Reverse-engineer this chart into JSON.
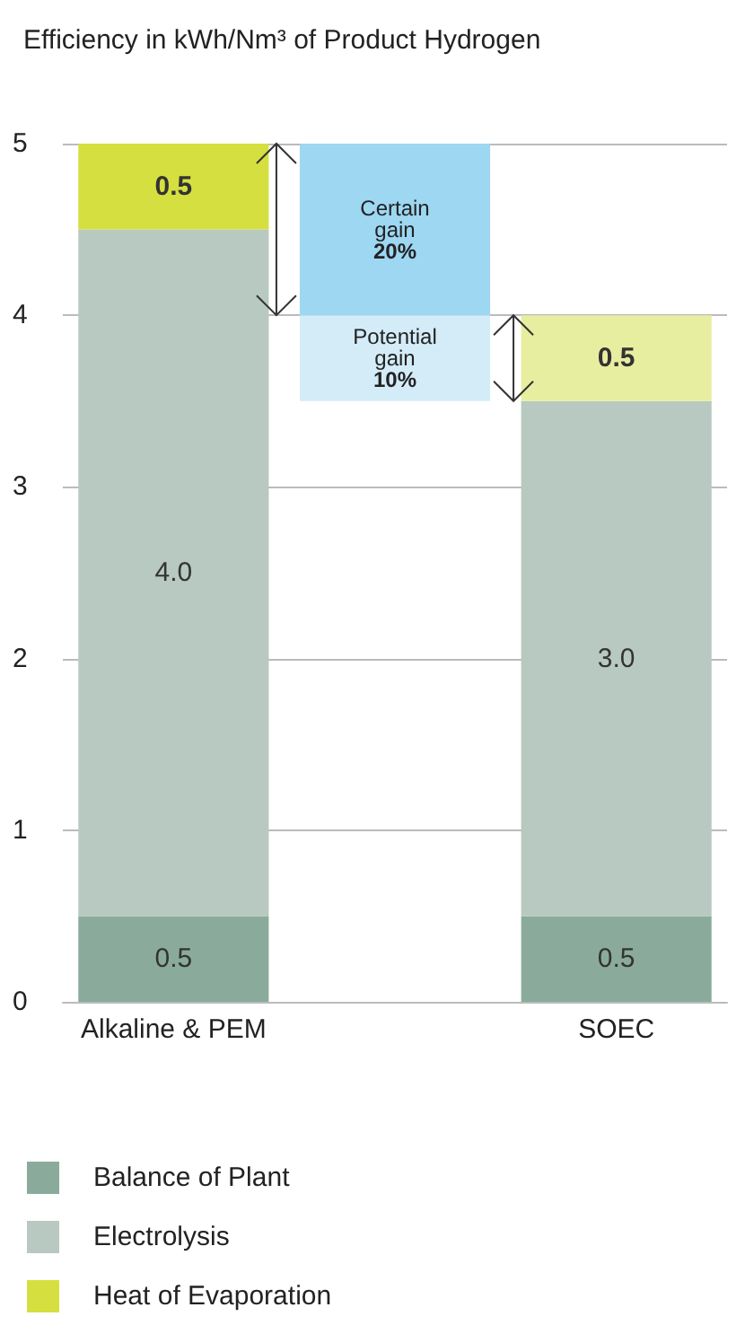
{
  "chart_data": {
    "type": "bar",
    "title": "Efficiency in kWh/Nm³ of Product Hydrogen",
    "categories": [
      "Alkaline & PEM",
      null,
      "SOEC"
    ],
    "stacked": true,
    "series": [
      {
        "name": "Balance of Plant",
        "color": "#8aab9c",
        "values": [
          0.5,
          null,
          0.5
        ],
        "value_labels": [
          "0.5",
          null,
          "0.5"
        ]
      },
      {
        "name": "Electrolysis",
        "color": "#b7c9c1",
        "values": [
          4.0,
          null,
          3.0
        ],
        "value_labels": [
          "4.0",
          null,
          "3.0"
        ]
      },
      {
        "name": "Heat of Evaporation",
        "color": "#d5df3f",
        "colors": [
          "#d5df3f",
          null,
          "#e8eea0"
        ],
        "values": [
          0.5,
          null,
          0.5
        ],
        "value_labels": [
          "0.5",
          null,
          "0.5"
        ]
      },
      {
        "color": "#d3ecf8",
        "base": [
          null,
          3.5,
          null
        ],
        "values": [
          null,
          0.5,
          null
        ],
        "value_labels": [
          null,
          "Potential\ngain\n10%",
          null
        ]
      },
      {
        "color": "#9dd7f2",
        "base": [
          null,
          4,
          null
        ],
        "values": [
          null,
          1,
          null
        ],
        "value_labels": [
          null,
          "Certain\ngain\n20%",
          null
        ]
      }
    ],
    "ylim": [
      0,
      5
    ],
    "yticks": [
      0,
      1,
      2,
      3,
      4,
      5
    ],
    "grid": "y",
    "legend": "bottom left"
  }
}
